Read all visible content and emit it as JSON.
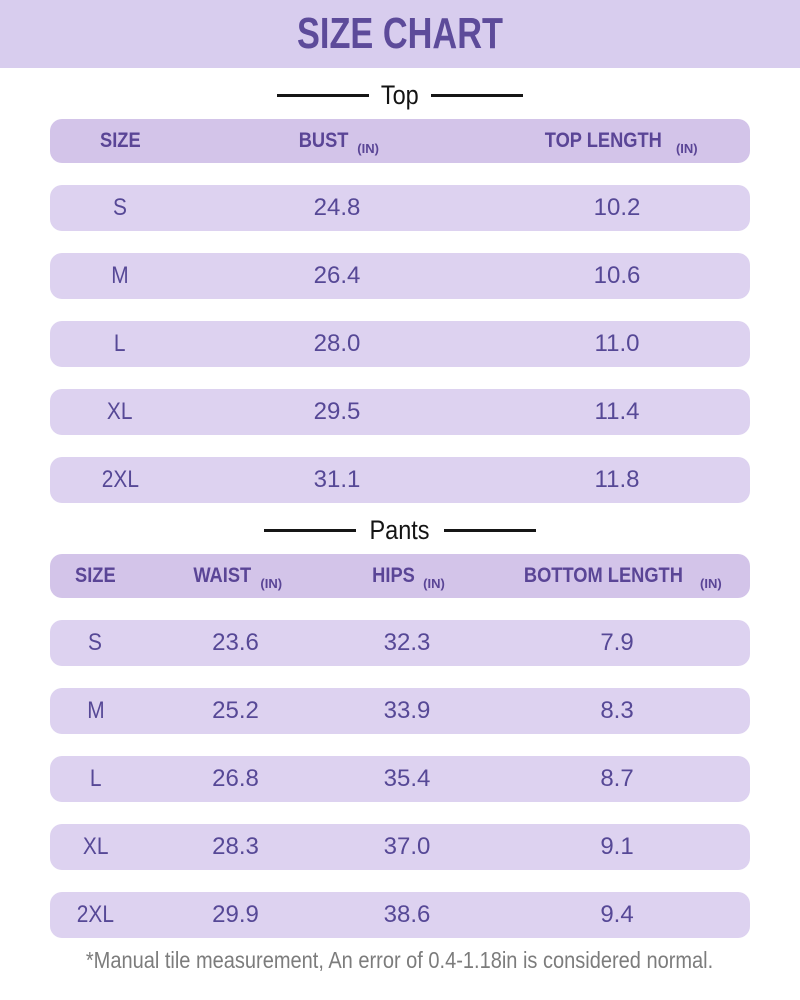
{
  "page": {
    "title": "SIZE CHART",
    "footnote": "*Manual tile measurement, An error of 0.4-1.18in is considered normal."
  },
  "colors": {
    "banner_bg": "#d8cdee",
    "title_text": "#5d4b9a",
    "table_header_bg": "#d3c4e9",
    "table_header_text": "#5a4596",
    "row_bg": "#ddd2f0",
    "cell_text": "#564896",
    "divider_text": "#141414",
    "footnote_text": "#7c7c7c",
    "page_bg": "#ffffff"
  },
  "chart_data": [
    {
      "type": "table",
      "title": "Top",
      "columns": [
        "SIZE",
        "BUST (IN)",
        "TOP LENGTH (IN)"
      ],
      "rows": [
        [
          "S",
          24.8,
          10.2
        ],
        [
          "M",
          26.4,
          10.6
        ],
        [
          "L",
          28.0,
          11.0
        ],
        [
          "XL",
          29.5,
          11.4
        ],
        [
          "2XL",
          31.1,
          11.8
        ]
      ]
    },
    {
      "type": "table",
      "title": "Pants",
      "columns": [
        "SIZE",
        "WAIST (IN)",
        "HIPS (IN)",
        "BOTTOM LENGTH (IN)"
      ],
      "rows": [
        [
          "S",
          23.6,
          32.3,
          7.9
        ],
        [
          "M",
          25.2,
          33.9,
          8.3
        ],
        [
          "L",
          26.8,
          35.4,
          8.7
        ],
        [
          "XL",
          28.3,
          37.0,
          9.1
        ],
        [
          "2XL",
          29.9,
          38.6,
          9.4
        ]
      ]
    }
  ],
  "sections": [
    {
      "label": "Top",
      "columns": [
        {
          "label": "SIZE",
          "unit": ""
        },
        {
          "label": "BUST",
          "unit": "(IN)"
        },
        {
          "label": "TOP LENGTH",
          "unit": "(IN)"
        }
      ],
      "rows": [
        [
          "S",
          "24.8",
          "10.2"
        ],
        [
          "M",
          "26.4",
          "10.6"
        ],
        [
          "L",
          "28.0",
          "11.0"
        ],
        [
          "XL",
          "29.5",
          "11.4"
        ],
        [
          "2XL",
          "31.1",
          "11.8"
        ]
      ]
    },
    {
      "label": "Pants",
      "columns": [
        {
          "label": "SIZE",
          "unit": ""
        },
        {
          "label": "WAIST",
          "unit": "(IN)"
        },
        {
          "label": "HIPS",
          "unit": "(IN)"
        },
        {
          "label": "BOTTOM LENGTH",
          "unit": "(IN)"
        }
      ],
      "rows": [
        [
          "S",
          "23.6",
          "32.3",
          "7.9"
        ],
        [
          "M",
          "25.2",
          "33.9",
          "8.3"
        ],
        [
          "L",
          "26.8",
          "35.4",
          "8.7"
        ],
        [
          "XL",
          "28.3",
          "37.0",
          "9.1"
        ],
        [
          "2XL",
          "29.9",
          "38.6",
          "9.4"
        ]
      ]
    }
  ]
}
